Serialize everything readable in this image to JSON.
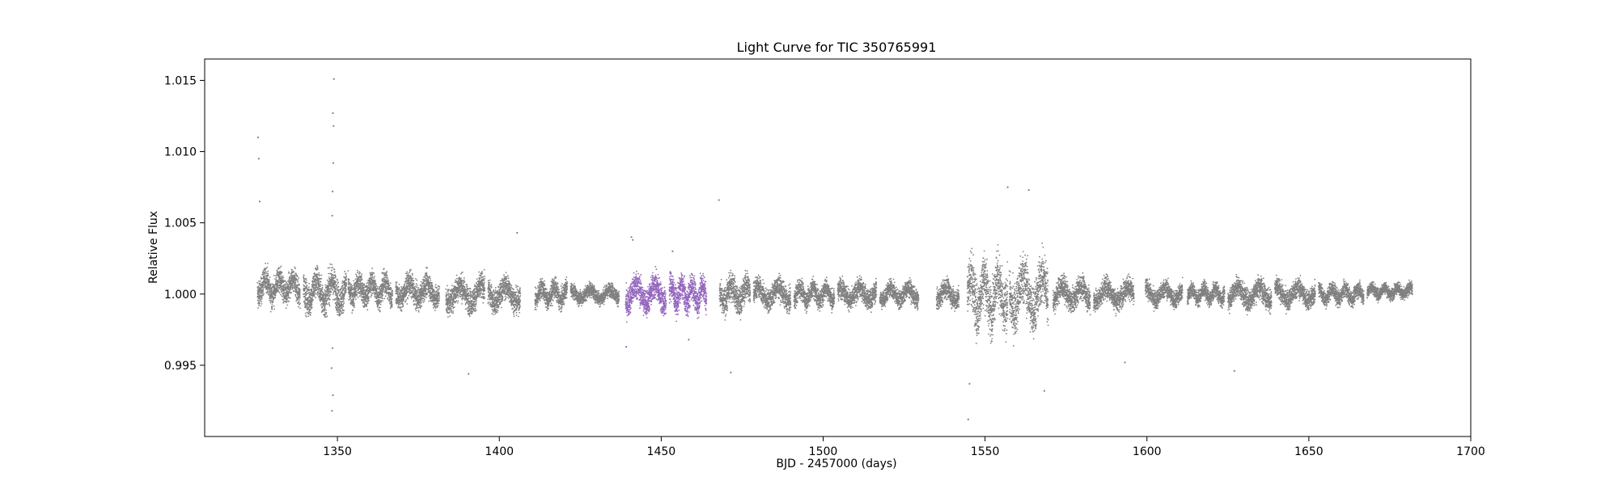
{
  "chart_data": {
    "type": "scatter",
    "title": "Light Curve for TIC 350765991",
    "xlabel": "BJD - 2457000 (days)",
    "ylabel": "Relative Flux",
    "xlim": [
      1309,
      1700
    ],
    "ylim": [
      0.99,
      1.0165
    ],
    "xticks": [
      1350,
      1400,
      1450,
      1500,
      1550,
      1600,
      1650,
      1700
    ],
    "yticks": [
      0.995,
      1.0,
      1.005,
      1.01,
      1.015
    ],
    "ytick_labels": [
      "0.995",
      "1.000",
      "1.005",
      "1.010",
      "1.015"
    ],
    "grid": false,
    "legend": "none",
    "colors": {
      "base": "#808080",
      "highlight": "#9467bd"
    },
    "series": [
      {
        "color": "#808080",
        "segments": [
          {
            "x": [
              1325.3,
              1338.5
            ],
            "center": 1.0005,
            "spread": 0.0013
          },
          {
            "x": [
              1339.5,
              1352.8
            ],
            "center": 1.0002,
            "spread": 0.0016
          },
          {
            "x": [
              1353.3,
              1367.0
            ],
            "center": 1.0003,
            "spread": 0.0012
          },
          {
            "x": [
              1368.0,
              1381.5
            ],
            "center": 1.0002,
            "spread": 0.0012
          },
          {
            "x": [
              1383.5,
              1395.5
            ],
            "center": 1.0,
            "spread": 0.0013
          },
          {
            "x": [
              1396.5,
              1406.5
            ],
            "center": 1.0,
            "spread": 0.0012
          },
          {
            "x": [
              1411.0,
              1421.0
            ],
            "center": 1.0,
            "spread": 0.001
          },
          {
            "x": [
              1422.0,
              1437.0
            ],
            "center": 1.0,
            "spread": 0.0007
          },
          {
            "x": [
              1468.0,
              1477.5
            ],
            "center": 1.0,
            "spread": 0.0014
          },
          {
            "x": [
              1478.5,
              1490.0
            ],
            "center": 1.0,
            "spread": 0.0011
          },
          {
            "x": [
              1491.0,
              1503.5
            ],
            "center": 1.0,
            "spread": 0.001
          },
          {
            "x": [
              1504.5,
              1516.5
            ],
            "center": 1.0,
            "spread": 0.001
          },
          {
            "x": [
              1517.5,
              1529.5
            ],
            "center": 1.0,
            "spread": 0.0009
          },
          {
            "x": [
              1535.0,
              1542.0
            ],
            "center": 1.0,
            "spread": 0.001
          },
          {
            "x": [
              1544.5,
              1557.0
            ],
            "center": 1.0,
            "spread": 0.0027
          },
          {
            "x": [
              1557.5,
              1569.5
            ],
            "center": 1.0,
            "spread": 0.0026
          },
          {
            "x": [
              1571.0,
              1582.5
            ],
            "center": 1.0,
            "spread": 0.0012
          },
          {
            "x": [
              1583.5,
              1596.0
            ],
            "center": 1.0,
            "spread": 0.0011
          },
          {
            "x": [
              1599.5,
              1611.0
            ],
            "center": 1.0,
            "spread": 0.0009
          },
          {
            "x": [
              1612.5,
              1624.0
            ],
            "center": 1.0,
            "spread": 0.0008
          },
          {
            "x": [
              1625.0,
              1638.5
            ],
            "center": 1.0,
            "spread": 0.0011
          },
          {
            "x": [
              1639.5,
              1652.0
            ],
            "center": 1.0,
            "spread": 0.001
          },
          {
            "x": [
              1653.0,
              1667.0
            ],
            "center": 1.0,
            "spread": 0.0008
          },
          {
            "x": [
              1668.0,
              1682.0
            ],
            "center": 1.0002,
            "spread": 0.0006
          }
        ],
        "outliers": [
          {
            "x": 1325.5,
            "y": 1.011
          },
          {
            "x": 1325.7,
            "y": 1.0095
          },
          {
            "x": 1326.0,
            "y": 1.0065
          },
          {
            "x": 1348.9,
            "y": 1.0151
          },
          {
            "x": 1348.6,
            "y": 1.0127
          },
          {
            "x": 1348.8,
            "y": 1.0118
          },
          {
            "x": 1348.7,
            "y": 1.0092
          },
          {
            "x": 1348.5,
            "y": 1.0072
          },
          {
            "x": 1348.4,
            "y": 1.0055
          },
          {
            "x": 1348.3,
            "y": 0.9918
          },
          {
            "x": 1348.6,
            "y": 0.9929
          },
          {
            "x": 1348.2,
            "y": 0.9948
          },
          {
            "x": 1348.5,
            "y": 0.9962
          },
          {
            "x": 1390.5,
            "y": 0.9944
          },
          {
            "x": 1405.5,
            "y": 1.0043
          },
          {
            "x": 1467.8,
            "y": 1.0066
          },
          {
            "x": 1471.5,
            "y": 0.9945
          },
          {
            "x": 1544.8,
            "y": 0.9912
          },
          {
            "x": 1545.2,
            "y": 0.9937
          },
          {
            "x": 1557.0,
            "y": 1.0075
          },
          {
            "x": 1563.5,
            "y": 1.0073
          },
          {
            "x": 1568.3,
            "y": 0.9932
          },
          {
            "x": 1593.2,
            "y": 0.9952
          },
          {
            "x": 1627.0,
            "y": 0.9946
          }
        ]
      },
      {
        "color": "#9467bd",
        "segments": [
          {
            "x": [
              1439.0,
              1451.5
            ],
            "center": 1.0,
            "spread": 0.0014
          },
          {
            "x": [
              1452.5,
              1464.0
            ],
            "center": 1.0,
            "spread": 0.0014
          }
        ],
        "outliers": [
          {
            "x": 1440.8,
            "y": 1.004
          },
          {
            "x": 1439.2,
            "y": 0.9963
          },
          {
            "x": 1441.2,
            "y": 1.0038
          },
          {
            "x": 1458.5,
            "y": 0.9968
          },
          {
            "x": 1453.5,
            "y": 1.003
          }
        ]
      }
    ]
  }
}
